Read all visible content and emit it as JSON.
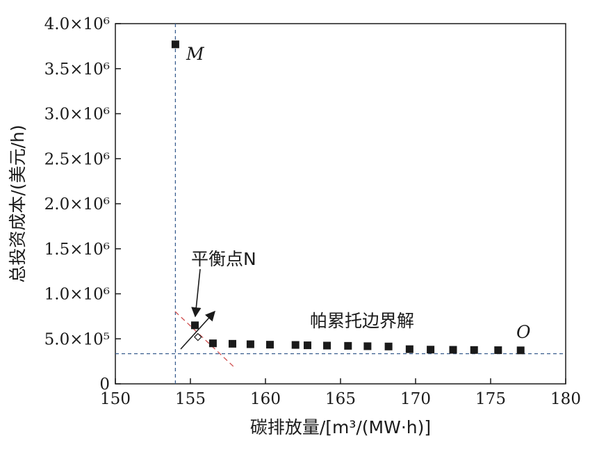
{
  "chart_data": {
    "type": "scatter",
    "xlabel": "碳排放量/[m³/(MW·h)]",
    "ylabel": "总投资成本/(美元/h)",
    "xlim": [
      150,
      180
    ],
    "ylim": [
      0,
      4000000
    ],
    "x_ticks": [
      150,
      155,
      160,
      165,
      170,
      175,
      180
    ],
    "x_tick_labels": [
      "150",
      "155",
      "160",
      "165",
      "170",
      "175",
      "180"
    ],
    "y_ticks": [
      0,
      500000,
      1000000,
      1500000,
      2000000,
      2500000,
      3000000,
      3500000,
      4000000
    ],
    "y_tick_labels": [
      "0",
      "5.0×10⁵",
      "1.0×10⁶",
      "1.5×10⁶",
      "2.0×10⁶",
      "2.5×10⁶",
      "3.0×10⁶",
      "3.5×10⁶",
      "4.0×10⁶"
    ],
    "grid": false,
    "series": [
      {
        "marker": "square",
        "color": "#1a1a1a",
        "x": [
          154.0,
          155.3,
          156.5,
          157.8,
          159.0,
          160.3,
          162.0,
          162.8,
          164.1,
          165.5,
          166.8,
          168.2,
          169.6,
          171.0,
          172.5,
          173.9,
          175.5,
          177.0
        ],
        "y": [
          3770000,
          650000,
          450000,
          445000,
          440000,
          435000,
          432000,
          428000,
          425000,
          422000,
          418000,
          415000,
          385000,
          380000,
          378000,
          376000,
          374000,
          372000
        ]
      }
    ],
    "reference_lines": [
      {
        "orientation": "vertical",
        "x": 154.0,
        "color": "#3a5f8f",
        "style": "dashed"
      },
      {
        "orientation": "horizontal",
        "y": 335000,
        "color": "#3a5f8f",
        "style": "dashed"
      }
    ],
    "balance_marker": {
      "x": 155.5,
      "y": 520000,
      "shape": "open-diamond"
    },
    "annotations": {
      "point_m": "M",
      "point_o": "O",
      "balance_point": "平衡点N",
      "pareto_frontier": "帕累托边界解"
    }
  }
}
